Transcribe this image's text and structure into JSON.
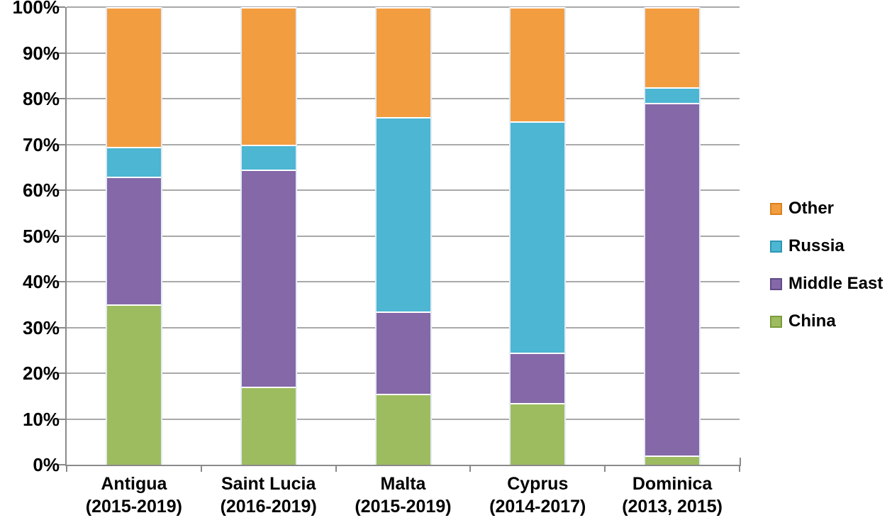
{
  "chart_data": {
    "type": "bar",
    "variant": "stacked-percent",
    "title": "",
    "xlabel": "",
    "ylabel": "",
    "ylim": [
      0,
      100
    ],
    "y_tick_step": 10,
    "y_tick_labels": [
      "0%",
      "10%",
      "20%",
      "30%",
      "40%",
      "50%",
      "60%",
      "70%",
      "80%",
      "90%",
      "100%"
    ],
    "grid": "horizontal",
    "legend_position": "right",
    "categories": [
      {
        "name": "Antigua",
        "period": "(2015-2019)"
      },
      {
        "name": "Saint Lucia",
        "period": "(2016-2019)"
      },
      {
        "name": "Malta",
        "period": "(2015-2019)"
      },
      {
        "name": "Cyprus",
        "period": "(2014-2017)"
      },
      {
        "name": "Dominica",
        "period": "(2013, 2015)"
      }
    ],
    "series": [
      {
        "name": "China",
        "color": "#9dbc5f",
        "edge_color": "#7a9b3c",
        "values": [
          35,
          17,
          15.5,
          13.5,
          2
        ]
      },
      {
        "name": "Middle East",
        "color": "#8568a8",
        "edge_color": "#5f4b85",
        "values": [
          28,
          47.5,
          18,
          11,
          77
        ]
      },
      {
        "name": "Russia",
        "color": "#4cb6d3",
        "edge_color": "#2e96b4",
        "values": [
          6.5,
          5.5,
          42.5,
          50.5,
          3.5
        ]
      },
      {
        "name": "Other",
        "color": "#f39d41",
        "edge_color": "#d8821f",
        "values": [
          30.5,
          30,
          24,
          25,
          17.5
        ]
      }
    ],
    "legend": [
      "Other",
      "Russia",
      "Middle East",
      "China"
    ]
  },
  "style_colors": {
    "gridline": "#a9a9a9",
    "axis": "#8a8a8a",
    "bar_side_edge": "#e3ebf5",
    "segment_separator": "#ffffff",
    "text": "#000000",
    "background": "#ffffff"
  }
}
